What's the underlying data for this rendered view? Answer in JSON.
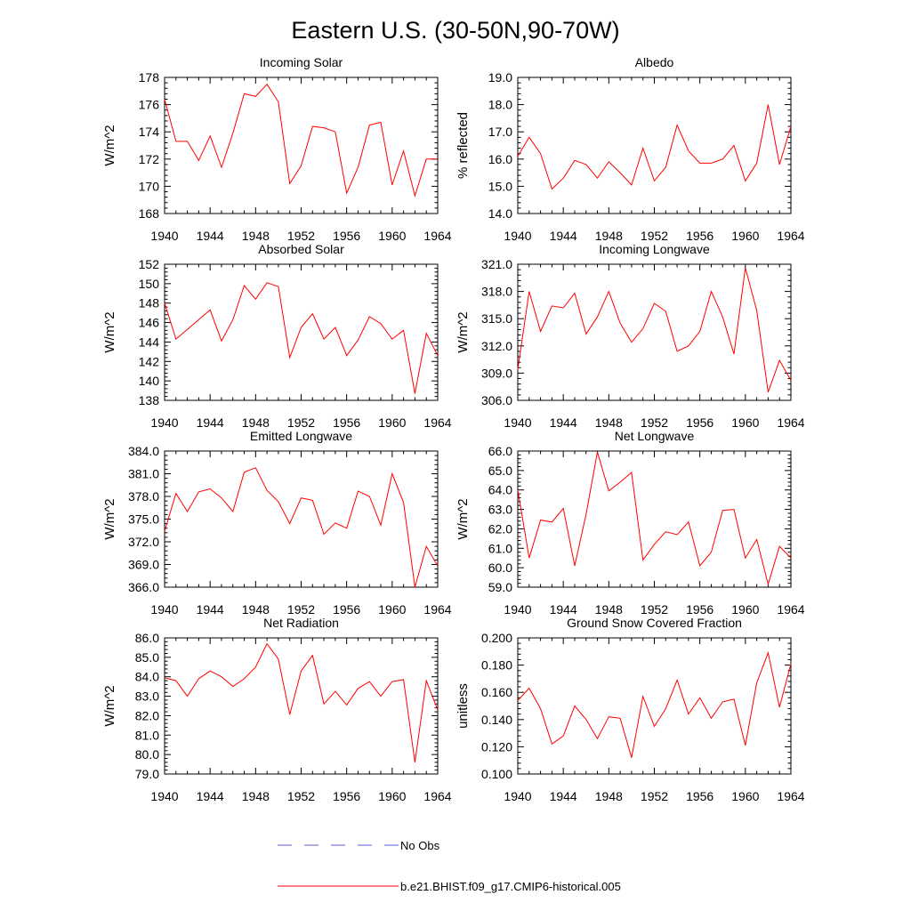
{
  "title": "Eastern U.S. (30-50N,90-70W)",
  "colors": {
    "model": "#ff0000",
    "obs": "#5a5ad8"
  },
  "legend": {
    "obs_label": "No Obs",
    "model_label": "b.e21.BHIST.f09_g17.CMIP6-historical.005"
  },
  "x_ticks": [
    1940,
    1944,
    1948,
    1952,
    1956,
    1960,
    1964
  ],
  "chart_data": [
    {
      "type": "line",
      "title": "Incoming Solar",
      "ylabel": "W/m^2",
      "ylim": [
        168,
        178
      ],
      "xlim": [
        1940,
        1964
      ],
      "yticks": [
        "168",
        "170",
        "172",
        "174",
        "176",
        "178"
      ],
      "x": [
        1940,
        1941,
        1942,
        1943,
        1944,
        1945,
        1946,
        1947,
        1948,
        1949,
        1950,
        1951,
        1952,
        1953,
        1954,
        1955,
        1956,
        1957,
        1958,
        1959,
        1960,
        1961,
        1962,
        1963,
        1964
      ],
      "series": [
        {
          "values": [
            176.4,
            173.3,
            173.3,
            171.9,
            173.7,
            171.4,
            173.9,
            176.8,
            176.6,
            177.5,
            176.2,
            170.2,
            171.5,
            174.4,
            174.3,
            174.0,
            169.5,
            171.4,
            174.5,
            174.7,
            170.1,
            172.6,
            169.3,
            172.0,
            172.0
          ]
        }
      ]
    },
    {
      "type": "line",
      "title": "Albedo",
      "ylabel": "% reflected",
      "ylim": [
        14,
        19
      ],
      "xlim": [
        1940,
        1964
      ],
      "yticks": [
        "14.0",
        "15.0",
        "16.0",
        "17.0",
        "18.0",
        "19.0"
      ],
      "x": [
        1940,
        1941,
        1942,
        1943,
        1944,
        1945,
        1946,
        1947,
        1948,
        1949,
        1950,
        1951,
        1952,
        1953,
        1954,
        1955,
        1956,
        1957,
        1958,
        1959,
        1960,
        1961,
        1962,
        1963,
        1964
      ],
      "series": [
        {
          "values": [
            16.1,
            16.8,
            16.2,
            14.9,
            15.3,
            15.95,
            15.8,
            15.3,
            15.9,
            15.5,
            15.05,
            16.4,
            15.2,
            15.7,
            17.25,
            16.3,
            15.85,
            15.85,
            16.0,
            16.5,
            15.2,
            15.85,
            18.0,
            15.8,
            17.2
          ]
        }
      ]
    },
    {
      "type": "line",
      "title": "Absorbed Solar",
      "ylabel": "W/m^2",
      "ylim": [
        138,
        152
      ],
      "xlim": [
        1940,
        1964
      ],
      "yticks": [
        "138",
        "140",
        "142",
        "144",
        "146",
        "148",
        "150",
        "152"
      ],
      "x": [
        1940,
        1941,
        1942,
        1943,
        1944,
        1945,
        1946,
        1947,
        1948,
        1949,
        1950,
        1951,
        1952,
        1953,
        1954,
        1955,
        1956,
        1957,
        1958,
        1959,
        1960,
        1961,
        1962,
        1963,
        1964
      ],
      "series": [
        {
          "values": [
            148.0,
            144.3,
            145.3,
            146.3,
            147.3,
            144.1,
            146.3,
            149.8,
            148.4,
            150.1,
            149.7,
            142.4,
            145.5,
            146.9,
            144.3,
            145.5,
            142.6,
            144.2,
            146.6,
            145.9,
            144.3,
            145.2,
            138.7,
            144.9,
            142.6
          ]
        }
      ]
    },
    {
      "type": "line",
      "title": "Incoming Longwave",
      "ylabel": "W/m^2",
      "ylim": [
        306,
        321
      ],
      "xlim": [
        1940,
        1964
      ],
      "yticks": [
        "306.0",
        "309.0",
        "312.0",
        "315.0",
        "318.0",
        "321.0"
      ],
      "x": [
        1940,
        1941,
        1942,
        1943,
        1944,
        1945,
        1946,
        1947,
        1948,
        1949,
        1950,
        1951,
        1952,
        1953,
        1954,
        1955,
        1956,
        1957,
        1958,
        1959,
        1960,
        1961,
        1962,
        1963,
        1964
      ],
      "series": [
        {
          "values": [
            309.4,
            318.0,
            313.6,
            316.4,
            316.2,
            317.8,
            313.3,
            315.2,
            318.0,
            314.5,
            312.4,
            313.9,
            316.7,
            315.8,
            311.4,
            312.0,
            313.6,
            318.0,
            315.2,
            311.1,
            320.6,
            315.9,
            306.9,
            310.4,
            308.2
          ]
        }
      ]
    },
    {
      "type": "line",
      "title": "Emitted Longwave",
      "ylabel": "W/m^2",
      "ylim": [
        366,
        384
      ],
      "xlim": [
        1940,
        1964
      ],
      "yticks": [
        "366.0",
        "369.0",
        "372.0",
        "375.0",
        "378.0",
        "381.0",
        "384.0"
      ],
      "x": [
        1940,
        1941,
        1942,
        1943,
        1944,
        1945,
        1946,
        1947,
        1948,
        1949,
        1950,
        1951,
        1952,
        1953,
        1954,
        1955,
        1956,
        1957,
        1958,
        1959,
        1960,
        1961,
        1962,
        1963,
        1964
      ],
      "series": [
        {
          "values": [
            373.4,
            378.4,
            376.0,
            378.6,
            379.0,
            377.8,
            376.0,
            381.2,
            381.8,
            378.8,
            377.3,
            374.4,
            377.8,
            377.5,
            373.0,
            374.5,
            373.8,
            378.7,
            378.0,
            374.2,
            381.0,
            377.2,
            366.0,
            371.4,
            368.8
          ]
        }
      ]
    },
    {
      "type": "line",
      "title": "Net Longwave",
      "ylabel": "W/m^2",
      "ylim": [
        59,
        66
      ],
      "xlim": [
        1940,
        1964
      ],
      "yticks": [
        "59.0",
        "60.0",
        "61.0",
        "62.0",
        "63.0",
        "64.0",
        "65.0",
        "66.0"
      ],
      "x": [
        1940,
        1941,
        1942,
        1943,
        1944,
        1945,
        1946,
        1947,
        1948,
        1949,
        1950,
        1951,
        1952,
        1953,
        1954,
        1955,
        1956,
        1957,
        1958,
        1959,
        1960,
        1961,
        1962,
        1963,
        1964
      ],
      "series": [
        {
          "values": [
            64.0,
            60.5,
            62.45,
            62.35,
            63.05,
            60.1,
            62.75,
            65.95,
            63.95,
            64.4,
            64.9,
            60.4,
            61.2,
            61.85,
            61.7,
            62.35,
            60.1,
            60.8,
            62.95,
            63.0,
            60.5,
            61.45,
            59.15,
            61.1,
            60.5
          ]
        }
      ]
    },
    {
      "type": "line",
      "title": "Net Radiation",
      "ylabel": "W/m^2",
      "ylim": [
        79,
        86
      ],
      "xlim": [
        1940,
        1964
      ],
      "yticks": [
        "79.0",
        "80.0",
        "81.0",
        "82.0",
        "83.0",
        "84.0",
        "85.0",
        "86.0"
      ],
      "x": [
        1940,
        1941,
        1942,
        1943,
        1944,
        1945,
        1946,
        1947,
        1948,
        1949,
        1950,
        1951,
        1952,
        1953,
        1954,
        1955,
        1956,
        1957,
        1958,
        1959,
        1960,
        1961,
        1962,
        1963,
        1964
      ],
      "series": [
        {
          "values": [
            83.95,
            83.8,
            83.0,
            83.9,
            84.3,
            84.0,
            83.5,
            83.9,
            84.5,
            85.7,
            84.9,
            82.05,
            84.3,
            85.1,
            82.6,
            83.25,
            82.55,
            83.4,
            83.75,
            83.0,
            83.75,
            83.85,
            79.6,
            83.8,
            82.3
          ]
        }
      ]
    },
    {
      "type": "line",
      "title": "Ground Snow Covered Fraction",
      "ylabel": "unitless",
      "ylim": [
        0.1,
        0.2
      ],
      "xlim": [
        1940,
        1964
      ],
      "yticks": [
        "0.100",
        "0.120",
        "0.140",
        "0.160",
        "0.180",
        "0.200"
      ],
      "x": [
        1940,
        1941,
        1942,
        1943,
        1944,
        1945,
        1946,
        1947,
        1948,
        1949,
        1950,
        1951,
        1952,
        1953,
        1954,
        1955,
        1956,
        1957,
        1958,
        1959,
        1960,
        1961,
        1962,
        1963,
        1964
      ],
      "series": [
        {
          "values": [
            0.154,
            0.163,
            0.148,
            0.122,
            0.128,
            0.15,
            0.14,
            0.126,
            0.142,
            0.141,
            0.112,
            0.157,
            0.135,
            0.148,
            0.169,
            0.144,
            0.156,
            0.141,
            0.153,
            0.155,
            0.121,
            0.167,
            0.189,
            0.149,
            0.181
          ]
        }
      ]
    }
  ]
}
